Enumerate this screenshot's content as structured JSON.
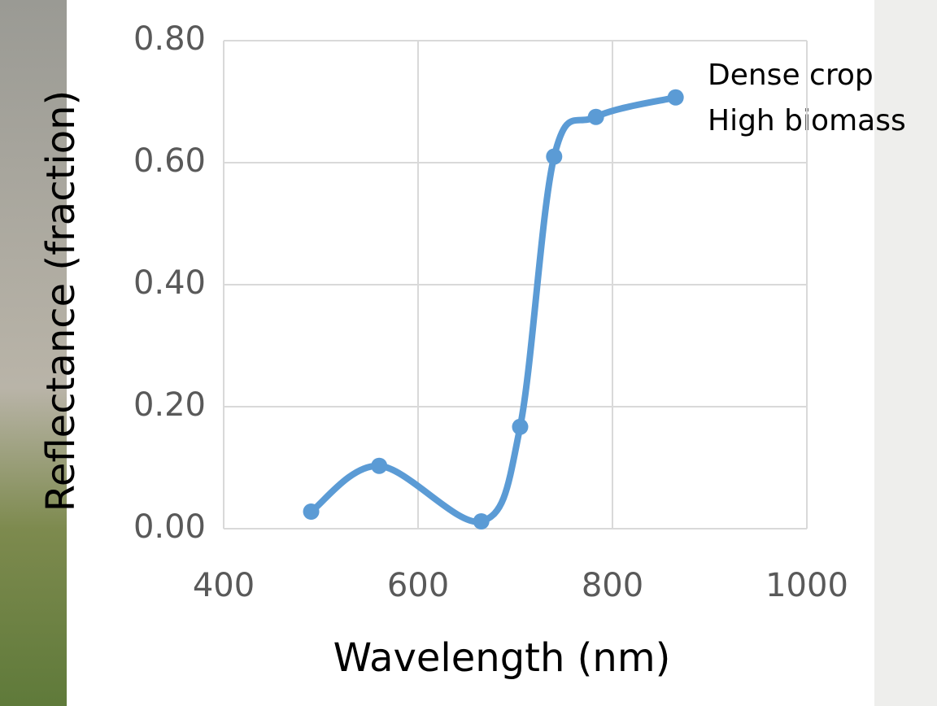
{
  "chart_data": {
    "type": "line",
    "x": [
      490,
      560,
      665,
      705,
      740,
      783,
      865
    ],
    "series": [
      {
        "color": "#5b9bd5",
        "values": [
          0.028,
          0.103,
          0.012,
          0.167,
          0.61,
          0.675,
          0.707
        ]
      }
    ],
    "xlim": [
      400,
      1000
    ],
    "xticks": [
      400,
      600,
      800,
      1000
    ],
    "ylim": [
      0,
      0.8
    ],
    "yticks": [
      {
        "value": 0,
        "label": "0.00"
      },
      {
        "value": 0.2,
        "label": "0.20"
      },
      {
        "value": 0.4,
        "label": "0.40"
      },
      {
        "value": 0.6,
        "label": "0.60"
      },
      {
        "value": 0.8,
        "label": "0.80"
      }
    ],
    "x_label": "Wavelength (nm)",
    "y_label": "Reflectance  (fraction)",
    "annotations": [
      "Dense crop",
      "High biomass"
    ],
    "grid": true,
    "smooth": true
  }
}
